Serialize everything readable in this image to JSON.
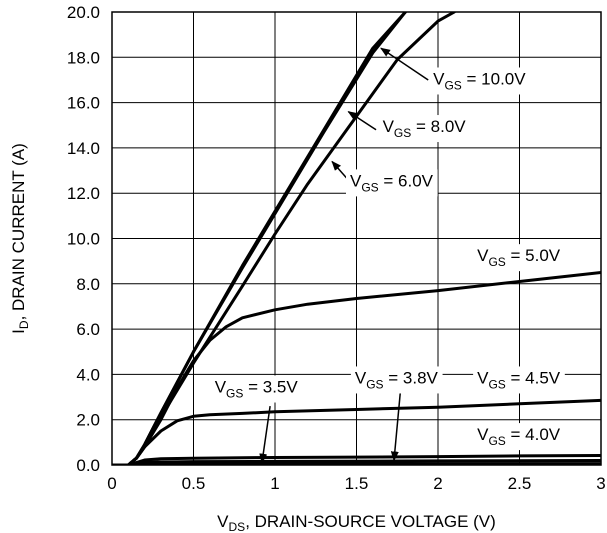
{
  "chart_data": {
    "type": "line",
    "xlabel": {
      "main": "V",
      "sub": "DS",
      "rest": ", DRAIN-SOURCE VOLTAGE (V)"
    },
    "ylabel": {
      "main": "I",
      "sub": "D",
      "rest": ", DRAIN CURRENT (A)"
    },
    "xlim": [
      0,
      3
    ],
    "ylim": [
      0,
      20
    ],
    "xticks": [
      "0",
      "0.5",
      "1",
      "1.5",
      "2",
      "2.5",
      "3"
    ],
    "xtick_values": [
      0,
      0.5,
      1,
      1.5,
      2,
      2.5,
      3
    ],
    "yticks": [
      "0.0",
      "2.0",
      "4.0",
      "6.0",
      "8.0",
      "10.0",
      "12.0",
      "14.0",
      "16.0",
      "18.0",
      "20.0"
    ],
    "ytick_values": [
      0,
      2,
      4,
      6,
      8,
      10,
      12,
      14,
      16,
      18,
      20
    ],
    "grid": true,
    "series": [
      {
        "name": "10.0V",
        "points": [
          [
            0,
            0
          ],
          [
            0.1,
            0
          ],
          [
            0.15,
            0.3
          ],
          [
            0.2,
            0.9
          ],
          [
            0.3,
            2.3
          ],
          [
            0.5,
            5.0
          ],
          [
            0.8,
            8.8
          ],
          [
            1.0,
            11.2
          ],
          [
            1.3,
            14.8
          ],
          [
            1.6,
            18.4
          ],
          [
            1.8,
            20.0
          ]
        ]
      },
      {
        "name": "8.0V",
        "points": [
          [
            0,
            0
          ],
          [
            0.1,
            0
          ],
          [
            0.15,
            0.3
          ],
          [
            0.2,
            0.9
          ],
          [
            0.3,
            2.3
          ],
          [
            0.5,
            5.0
          ],
          [
            0.8,
            8.7
          ],
          [
            1.0,
            11.1
          ],
          [
            1.3,
            14.7
          ],
          [
            1.6,
            18.2
          ],
          [
            1.8,
            20.0
          ]
        ]
      },
      {
        "name": "6.0V",
        "points": [
          [
            0,
            0
          ],
          [
            0.1,
            0
          ],
          [
            0.15,
            0.3
          ],
          [
            0.2,
            0.8
          ],
          [
            0.3,
            2.1
          ],
          [
            0.5,
            4.5
          ],
          [
            0.8,
            7.9
          ],
          [
            1.0,
            10.2
          ],
          [
            1.2,
            12.4
          ],
          [
            1.5,
            15.4
          ],
          [
            1.75,
            17.9
          ],
          [
            2.0,
            19.6
          ],
          [
            2.1,
            20.0
          ]
        ]
      },
      {
        "name": "5.0V",
        "points": [
          [
            0,
            0
          ],
          [
            0.1,
            0
          ],
          [
            0.15,
            0.3
          ],
          [
            0.2,
            0.8
          ],
          [
            0.3,
            2.0
          ],
          [
            0.4,
            3.4
          ],
          [
            0.5,
            4.6
          ],
          [
            0.6,
            5.5
          ],
          [
            0.7,
            6.1
          ],
          [
            0.8,
            6.5
          ],
          [
            1.0,
            6.85
          ],
          [
            1.2,
            7.1
          ],
          [
            1.5,
            7.35
          ],
          [
            2.0,
            7.7
          ],
          [
            2.5,
            8.1
          ],
          [
            3.0,
            8.5
          ]
        ]
      },
      {
        "name": "4.5V",
        "points": [
          [
            0,
            0
          ],
          [
            0.1,
            0
          ],
          [
            0.15,
            0.3
          ],
          [
            0.2,
            0.8
          ],
          [
            0.3,
            1.5
          ],
          [
            0.4,
            1.95
          ],
          [
            0.5,
            2.15
          ],
          [
            0.6,
            2.22
          ],
          [
            0.8,
            2.28
          ],
          [
            1.0,
            2.35
          ],
          [
            1.5,
            2.45
          ],
          [
            2.0,
            2.55
          ],
          [
            2.5,
            2.7
          ],
          [
            3.0,
            2.85
          ]
        ]
      },
      {
        "name": "4.0V",
        "points": [
          [
            0,
            0
          ],
          [
            0.1,
            0
          ],
          [
            0.2,
            0.22
          ],
          [
            0.3,
            0.28
          ],
          [
            0.5,
            0.3
          ],
          [
            1.0,
            0.33
          ],
          [
            1.5,
            0.35
          ],
          [
            2.0,
            0.37
          ],
          [
            2.5,
            0.4
          ],
          [
            3.0,
            0.42
          ]
        ]
      },
      {
        "name": "3.8V",
        "points": [
          [
            0,
            0
          ],
          [
            0.1,
            0
          ],
          [
            0.2,
            0.12
          ],
          [
            0.5,
            0.15
          ],
          [
            1.0,
            0.16
          ],
          [
            2.0,
            0.18
          ],
          [
            3.0,
            0.2
          ]
        ]
      },
      {
        "name": "3.5V",
        "points": [
          [
            0,
            0
          ],
          [
            0.1,
            0
          ],
          [
            0.2,
            0.04
          ],
          [
            1.0,
            0.05
          ],
          [
            3.0,
            0.06
          ]
        ]
      }
    ],
    "annotations": [
      {
        "pre": "V",
        "sub": "GS",
        "post": " = 10.0V",
        "x": 1.97,
        "y": 16.8,
        "tip": [
          1.65,
          18.4
        ],
        "from": [
          1.94,
          17.0
        ],
        "box": true
      },
      {
        "pre": "V",
        "sub": "GS",
        "post": " = 8.0V",
        "x": 1.66,
        "y": 14.7,
        "tip": [
          1.45,
          15.6
        ],
        "from": [
          1.62,
          14.8
        ],
        "box": false
      },
      {
        "pre": "V",
        "sub": "GS",
        "post": " = 6.0V",
        "x": 1.46,
        "y": 12.3,
        "tip": [
          1.35,
          13.4
        ],
        "from": [
          1.46,
          12.5
        ],
        "box": false
      },
      {
        "pre": "V",
        "sub": "GS",
        "post": " = 5.0V",
        "x": 2.24,
        "y": 9.0,
        "tip": null,
        "from": null,
        "box": false
      },
      {
        "pre": "V",
        "sub": "GS",
        "post": " = 4.5V",
        "x": 2.24,
        "y": 3.6,
        "tip": null,
        "from": null,
        "box": false
      },
      {
        "pre": "V",
        "sub": "GS",
        "post": " = 4.0V",
        "x": 2.24,
        "y": 1.1,
        "tip": null,
        "from": null,
        "box": false
      },
      {
        "pre": "V",
        "sub": "GS",
        "post": " = 3.8V",
        "x": 1.49,
        "y": 3.6,
        "tip": [
          1.73,
          0.2
        ],
        "from": [
          1.77,
          3.3
        ],
        "box": false
      },
      {
        "pre": "V",
        "sub": "GS",
        "post": " = 3.5V",
        "x": 0.63,
        "y": 3.2,
        "tip": [
          0.92,
          0.1
        ],
        "from": [
          0.97,
          2.6
        ],
        "box": false
      }
    ]
  }
}
